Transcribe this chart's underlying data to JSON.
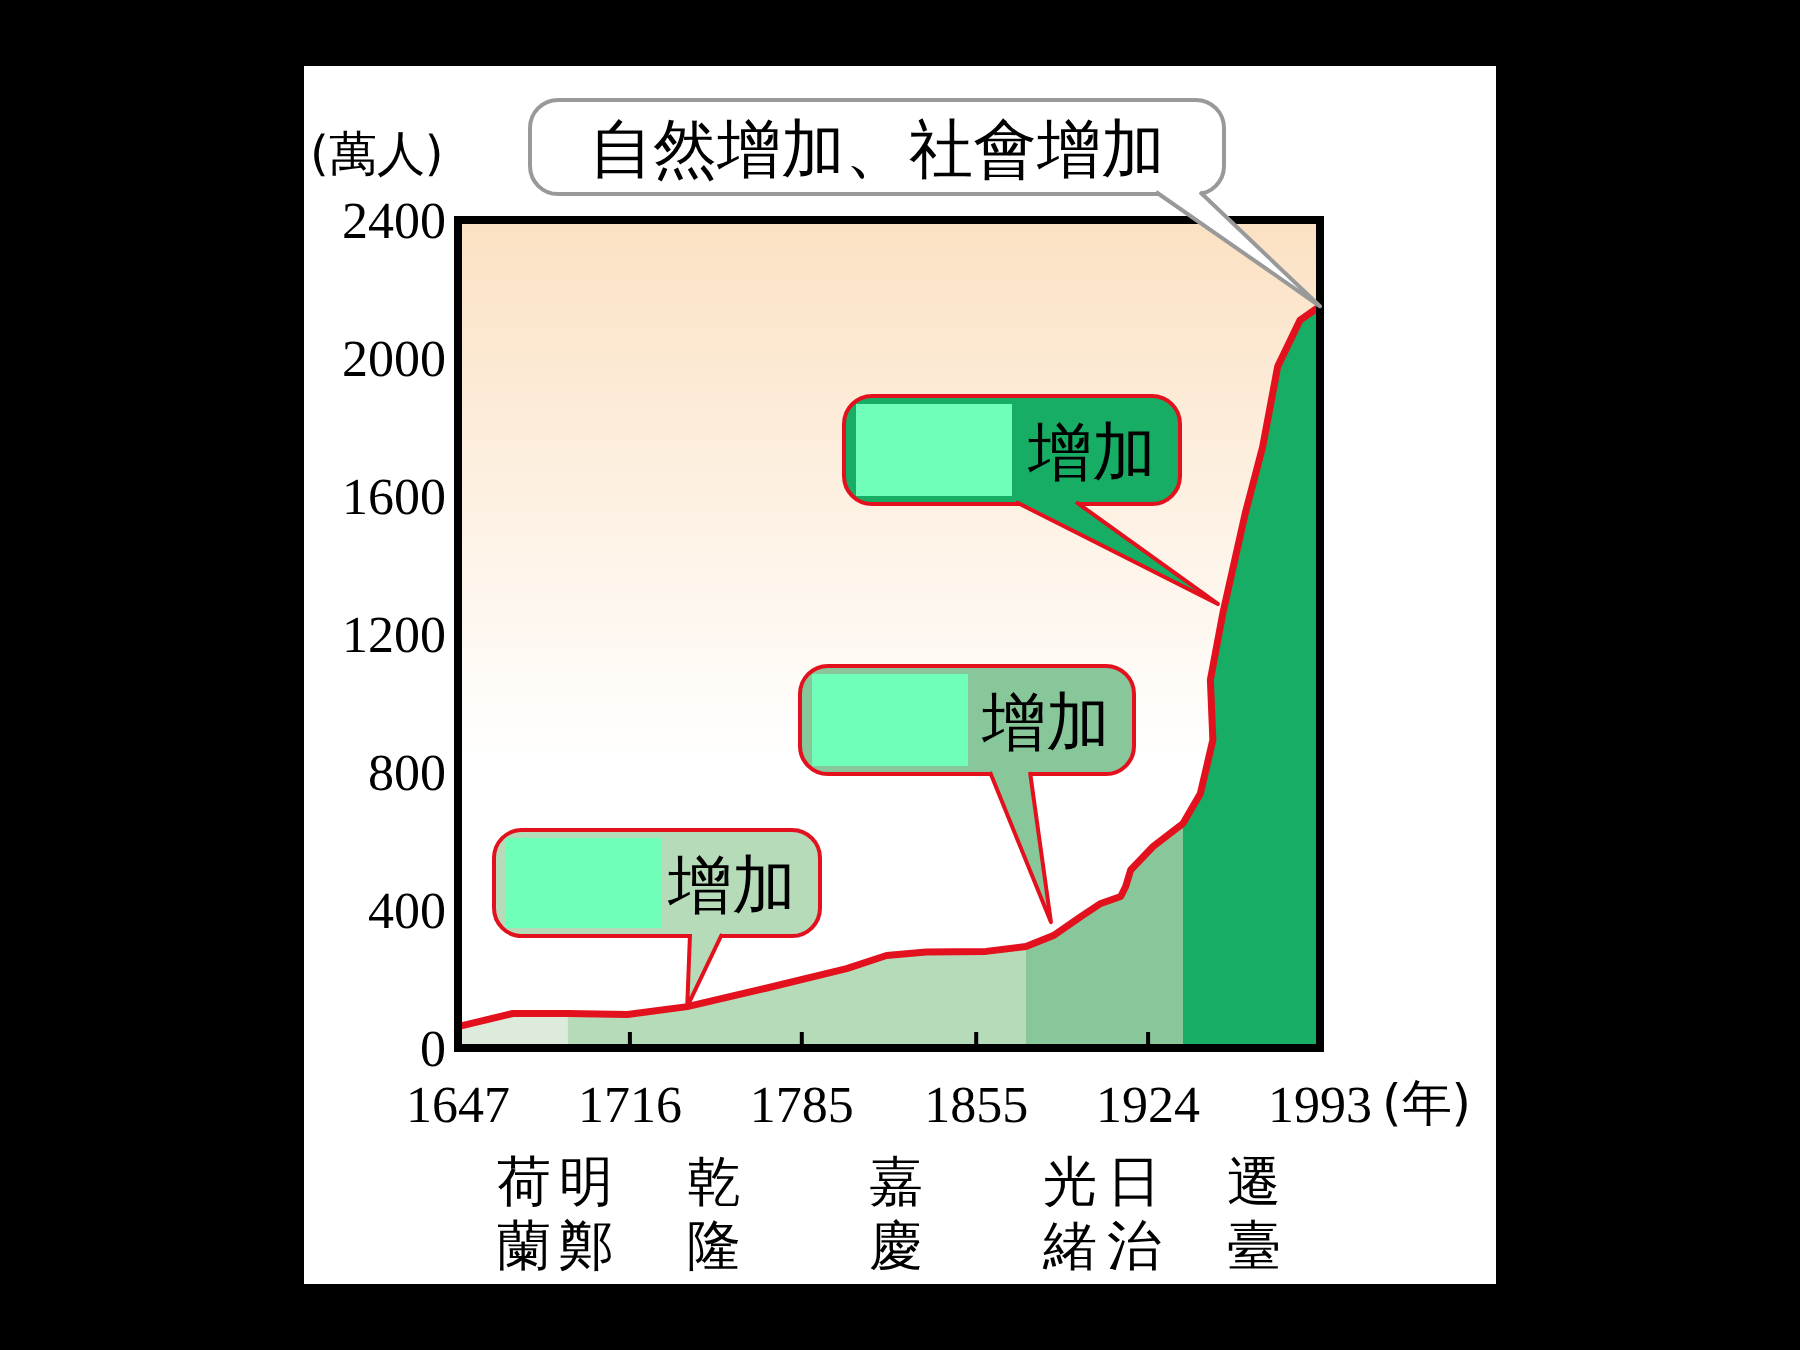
{
  "chart_data": {
    "type": "area",
    "ylabel": "(萬人)",
    "xlabel": "(年)",
    "xlim": [
      1647,
      1993
    ],
    "xticks": [
      1647,
      1716,
      1785,
      1855,
      1924,
      1993
    ],
    "ylim": [
      0,
      2400
    ],
    "yticks": [
      0,
      400,
      800,
      1200,
      1600,
      2000,
      2400
    ],
    "grid": false,
    "series": [
      {
        "color": "#dcebdc",
        "x": [
          1647,
          1669,
          1691
        ],
        "values": [
          62,
          100,
          100
        ]
      },
      {
        "color": "#b6dbb9",
        "x": [
          1691,
          1715,
          1739,
          1771,
          1803,
          1819,
          1835,
          1859,
          1875
        ],
        "values": [
          100,
          97,
          120,
          174,
          230,
          268,
          278,
          280,
          294
        ]
      },
      {
        "color": "#88c799",
        "x": [
          1875,
          1886,
          1897,
          1905,
          1913,
          1915,
          1917,
          1926,
          1938
        ],
        "values": [
          294,
          326,
          381,
          419,
          439,
          468,
          516,
          584,
          651
        ]
      },
      {
        "color": "#17ad64",
        "x": [
          1938,
          1945,
          1950,
          1949,
          1954,
          1963,
          1970,
          1976,
          1985,
          1993
        ],
        "values": [
          651,
          738,
          893,
          1067,
          1260,
          1550,
          1743,
          1975,
          2110,
          2150
        ]
      },
      {
        "type": "line",
        "color": "#e3101e",
        "x": [
          1647,
          1669,
          1691,
          1715,
          1739,
          1771,
          1803,
          1819,
          1835,
          1859,
          1875,
          1886,
          1897,
          1905,
          1913,
          1915,
          1917,
          1926,
          1938,
          1945,
          1950,
          1949,
          1954,
          1963,
          1970,
          1976,
          1985,
          1993
        ],
        "values": [
          62,
          100,
          100,
          97,
          120,
          174,
          230,
          268,
          278,
          280,
          294,
          326,
          381,
          419,
          439,
          468,
          516,
          584,
          651,
          738,
          893,
          1067,
          1260,
          1550,
          1743,
          1975,
          2110,
          2150
        ]
      }
    ],
    "annotations": [
      "自然增加、社會增加",
      {
        "text": "增加",
        "x": 1739,
        "y": 120
      },
      {
        "text": "增加",
        "x": 1885,
        "y": 365
      },
      {
        "text": "增加",
        "x": 1952,
        "y": 1287
      },
      "荷蘭",
      "明鄭",
      "乾隆",
      "嘉慶",
      "光緒",
      "日治",
      "遷臺"
    ]
  }
}
